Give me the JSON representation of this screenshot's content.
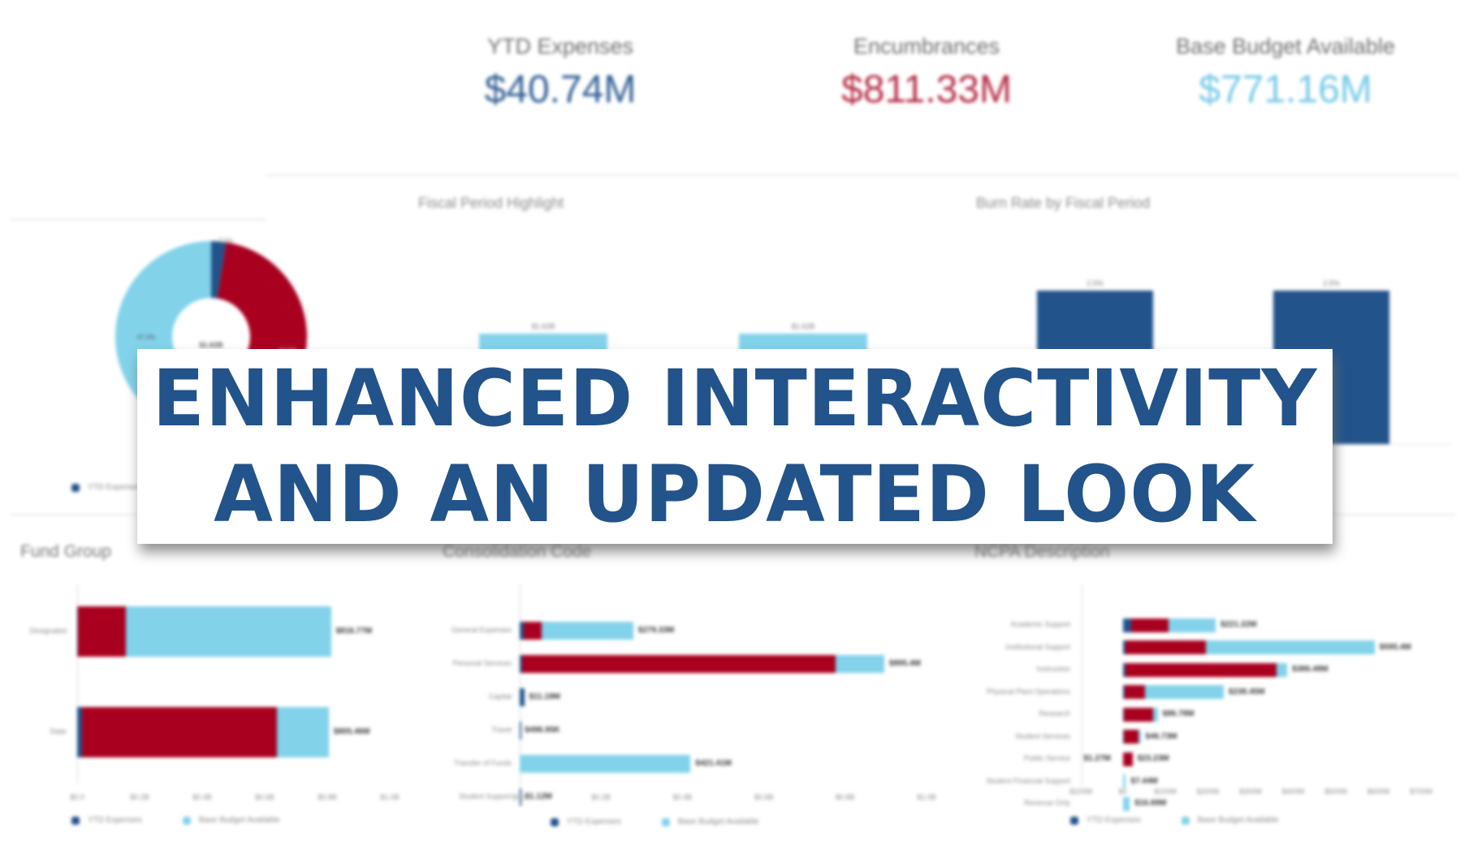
{
  "kpis": [
    {
      "label": "YTD Expenses",
      "value": "$40.74M",
      "color": "#2f5d93"
    },
    {
      "label": "Encumbrances",
      "value": "$811.33M",
      "color": "#b52a45"
    },
    {
      "label": "Base Budget Available",
      "value": "$771.16M",
      "color": "#74c9e8"
    }
  ],
  "colors": {
    "ytd": "#22538a",
    "encumbrances": "#a90020",
    "base_budget": "#82d2ea",
    "banner_text": "#22538a"
  },
  "banner": {
    "line1": "ENHANCED INTERACTIVITY",
    "line2": "AND AN UPDATED LOOK"
  },
  "legend": {
    "ytd": "YTD Expenses",
    "base": "Base Budget Available"
  },
  "chart_data": [
    {
      "id": "budget-donut",
      "type": "pie",
      "title": "",
      "center_label": "$1.62B",
      "slices": [
        {
          "name": "YTD Expenses",
          "value": 2.5,
          "label": "2.5%",
          "color": "#22538a"
        },
        {
          "name": "Encumbrances",
          "value": 50.5,
          "label": "50.5%",
          "color": "#a90020"
        },
        {
          "name": "Base Budget Available",
          "value": 47.0,
          "label": "47.0%",
          "color": "#82d2ea"
        }
      ],
      "legend": [
        "YTD Expenses"
      ]
    },
    {
      "id": "fiscal-period-highlight",
      "type": "bar",
      "title": "Fiscal Period Highlight",
      "categories": [
        "",
        ""
      ],
      "values": [
        1.62,
        1.62
      ],
      "data_labels": [
        "$1.62B",
        "$1.62B"
      ],
      "ylim": [
        0,
        2.6
      ],
      "color": "#82d2ea"
    },
    {
      "id": "burn-rate",
      "type": "bar",
      "title": "Burn Rate by Fiscal Period",
      "categories": [
        "",
        ""
      ],
      "values": [
        2.5,
        2.5
      ],
      "data_labels": [
        "2.5%",
        "2.5%"
      ],
      "ylim": [
        0,
        2.85
      ],
      "color": "#22538a"
    },
    {
      "id": "fund-group",
      "type": "bar",
      "orientation": "horizontal",
      "stacked": true,
      "title": "Fund Group",
      "categories": [
        "Designated",
        "State"
      ],
      "series": [
        {
          "name": "YTD Expenses",
          "values": [
            0.002,
            0.016
          ]
        },
        {
          "name": "Encumbrances",
          "values": [
            0.153,
            0.624
          ]
        },
        {
          "name": "Base Budget Available",
          "values": [
            0.657,
            0.165
          ]
        }
      ],
      "data_labels": [
        "$816.77M",
        "$805.46M"
      ],
      "xticks": [
        "$0.0",
        "$0.2B",
        "$0.4B",
        "$0.6B",
        "$0.8B",
        "$1.0B"
      ],
      "xlim": [
        0,
        1.0
      ],
      "legend": [
        "YTD Expenses",
        "Base Budget Available"
      ]
    },
    {
      "id": "consolidation-code",
      "type": "bar",
      "orientation": "horizontal",
      "stacked": true,
      "title": "Consolidation Code",
      "categories": [
        "General Expenses",
        "Personal Services",
        "Capital",
        "Travel",
        "Transfer of Funds",
        "Student Support"
      ],
      "series": [
        {
          "name": "YTD Expenses",
          "values": [
            0.009,
            0.006,
            0.011,
            0.0005,
            0.0,
            0.001
          ]
        },
        {
          "name": "Encumbrances",
          "values": [
            0.045,
            0.77,
            0.0,
            0.0,
            0.0,
            0.0
          ]
        },
        {
          "name": "Base Budget Available",
          "values": [
            0.225,
            0.12,
            0.0,
            0.0,
            0.42,
            0.0
          ]
        }
      ],
      "data_labels": [
        "$279.33M",
        "$895.4M",
        "$11.18M",
        "$496.95K",
        "$421.41M",
        "$1.12M"
      ],
      "xticks": [
        "$0.0",
        "$0.2B",
        "$0.4B",
        "$0.6B",
        "$0.8B",
        "$1.0B"
      ],
      "xlim": [
        0,
        1.0
      ],
      "legend": [
        "YTD Expenses",
        "Base Budget Available"
      ]
    },
    {
      "id": "ncpa-description",
      "type": "bar",
      "orientation": "horizontal",
      "stacked": true,
      "title": "NCPA Description",
      "categories": [
        "Academic Support",
        "Institutional Support",
        "Instruction",
        "Physical Plant Operations",
        "Research",
        "Student Services",
        "Public Service",
        "Student Financial Support",
        "Revenue Only"
      ],
      "series": [
        {
          "name": "YTD Expenses",
          "values": [
            20,
            6,
            6,
            4,
            2,
            2,
            1,
            0,
            0
          ]
        },
        {
          "name": "Encumbrances",
          "values": [
            88,
            190,
            355,
            48,
            70,
            35,
            22,
            0,
            0
          ]
        },
        {
          "name": "Base Budget Available",
          "values": [
            110,
            395,
            25,
            185,
            10,
            5,
            -1.27,
            7.44,
            16.69
          ]
        }
      ],
      "data_labels": [
        "$221.22M",
        "$595.4M",
        "$386.48M",
        "$238.45M",
        "$86.78M",
        "$46.73M",
        "$23.23M",
        "$7.44M",
        "$16.69M"
      ],
      "negative_label": {
        "category": "Public Service",
        "label": "$1.27M"
      },
      "xticks": [
        "-$100M",
        "$0",
        "$100M",
        "$200M",
        "$300M",
        "$400M",
        "$500M",
        "$600M",
        "$700M"
      ],
      "xlim": [
        -100,
        700
      ],
      "legend": [
        "YTD Expenses",
        "Base Budget Available"
      ]
    }
  ]
}
